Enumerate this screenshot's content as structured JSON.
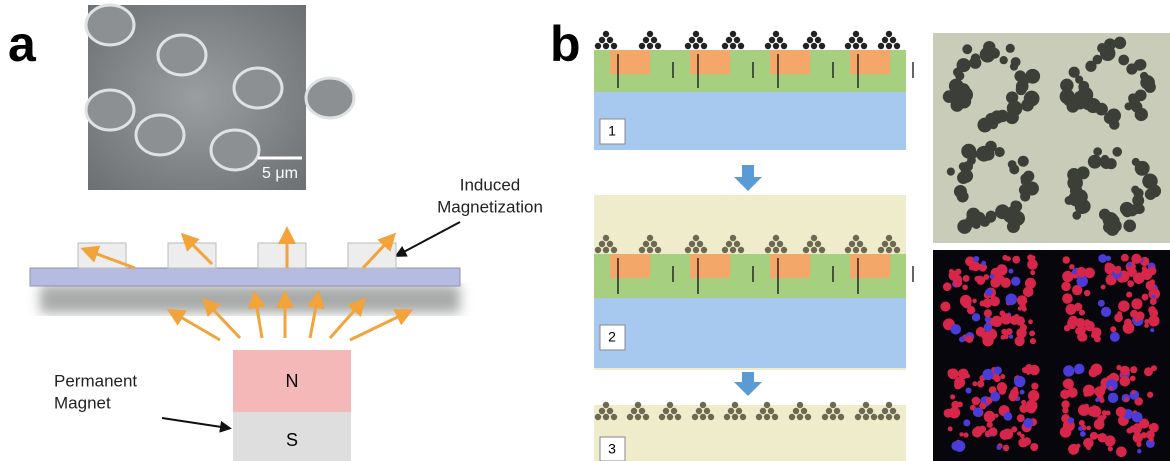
{
  "panel_a": {
    "label": "a",
    "scale_bar": "5 μm",
    "induced_label": [
      "Induced",
      "Magnetization"
    ],
    "magnet_label": [
      "Permanent",
      "Magnet"
    ],
    "poles": [
      "N",
      "S"
    ]
  },
  "panel_b": {
    "label": "b",
    "steps": [
      "1",
      "2",
      "3"
    ]
  }
}
